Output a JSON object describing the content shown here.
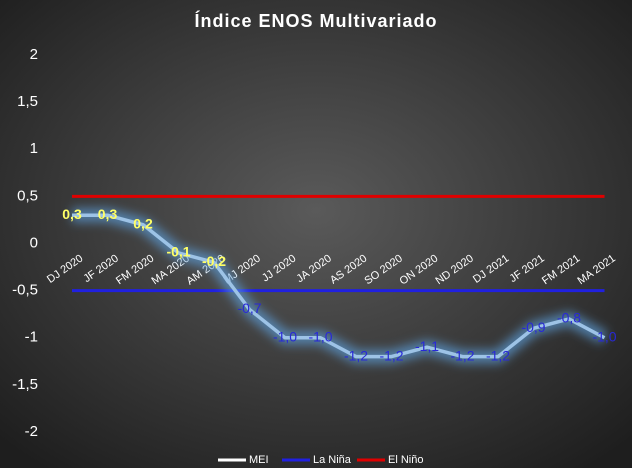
{
  "chart_data": {
    "type": "line",
    "title": "Índice ENOS Multivariado",
    "categories": [
      "DJ 2020",
      "JF 2020",
      "FM 2020",
      "MA 2020",
      "AM 2020",
      "MJ 2020",
      "JJ 2020",
      "JA 2020",
      "AS 2020",
      "SO 2020",
      "ON 2020",
      "ND 2020",
      "DJ 2021",
      "JF 2021",
      "FM 2021",
      "MA 2021"
    ],
    "series": [
      {
        "name": "MEI",
        "color": "#9dc3e6",
        "legend_color": "#ffffff",
        "values": [
          0.3,
          0.3,
          0.2,
          -0.1,
          -0.2,
          -0.7,
          -1.0,
          -1.0,
          -1.2,
          -1.2,
          -1.1,
          -1.2,
          -1.2,
          -0.9,
          -0.8,
          -1.0
        ],
        "value_labels": [
          "0,3",
          "0,3",
          "0,2",
          "-0,1",
          "-0,2",
          "-0,7",
          "-1,0",
          "-1,0",
          "-1,2",
          "-1,2",
          "-1,1",
          "-1,2",
          "-1,2",
          "-0,9",
          "-0,8",
          "-1,0"
        ],
        "value_label_colors": [
          "#ffff66",
          "#ffff66",
          "#ffff66",
          "#ffff66",
          "#ffff66",
          "#2828d8",
          "#2828d8",
          "#2828d8",
          "#2828d8",
          "#2828d8",
          "#2828d8",
          "#2828d8",
          "#2828d8",
          "#2828d8",
          "#2828d8",
          "#2828d8"
        ]
      },
      {
        "name": "La Niña",
        "color": "#2020e0",
        "values": [
          -0.5,
          -0.5,
          -0.5,
          -0.5,
          -0.5,
          -0.5,
          -0.5,
          -0.5,
          -0.5,
          -0.5,
          -0.5,
          -0.5,
          -0.5,
          -0.5,
          -0.5,
          -0.5
        ]
      },
      {
        "name": "El Niño",
        "color": "#e00000",
        "values": [
          0.5,
          0.5,
          0.5,
          0.5,
          0.5,
          0.5,
          0.5,
          0.5,
          0.5,
          0.5,
          0.5,
          0.5,
          0.5,
          0.5,
          0.5,
          0.5
        ]
      }
    ],
    "ylim": [
      -2,
      2
    ],
    "yticks": [
      2,
      {
        "value": 1.5,
        "label": "1,5"
      },
      1,
      {
        "value": 0.5,
        "label": "0,5"
      },
      0,
      {
        "value": -0.5,
        "label": "-0,5"
      },
      -1,
      {
        "value": -1.5,
        "label": "-1,5"
      },
      -2
    ],
    "legend": "bottom"
  }
}
